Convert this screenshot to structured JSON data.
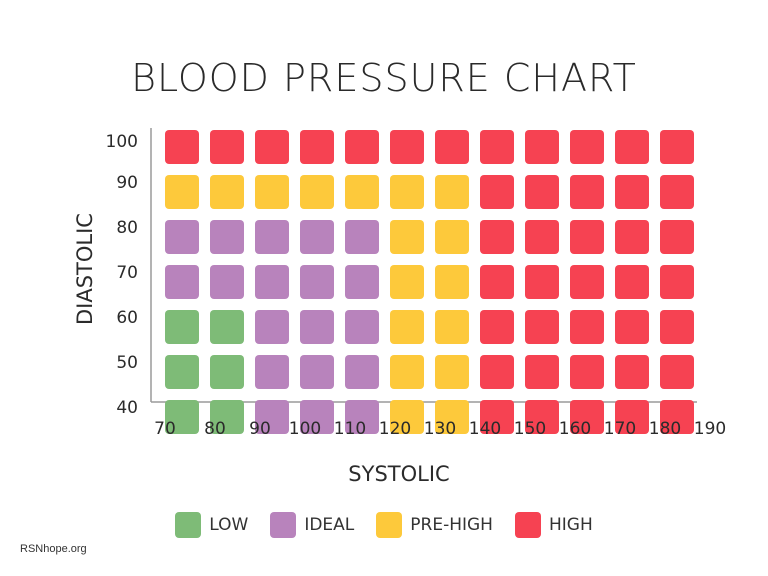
{
  "chart_data": {
    "type": "heatmap",
    "title": "BLOOD PRESSURE CHART",
    "xlabel": "SYSTOLIC",
    "ylabel": "DIASTOLIC",
    "x": [
      70,
      80,
      90,
      100,
      110,
      120,
      130,
      140,
      150,
      160,
      170,
      180,
      190
    ],
    "y": [
      100,
      90,
      80,
      70,
      60,
      50,
      40
    ],
    "grid_columns": [
      80,
      90,
      100,
      110,
      120,
      130,
      140,
      150,
      160,
      170,
      180,
      190
    ],
    "categories": {
      "low": {
        "label": "LOW",
        "color": "#7ebb77"
      },
      "ideal": {
        "label": "IDEAL",
        "color": "#b883bc"
      },
      "pre_high": {
        "label": "PRE-HIGH",
        "color": "#fdc93b"
      },
      "high": {
        "label": "HIGH",
        "color": "#f64252"
      }
    },
    "cells": [
      [
        "high",
        "high",
        "high",
        "high",
        "high",
        "high",
        "high",
        "high",
        "high",
        "high",
        "high",
        "high"
      ],
      [
        "pre_high",
        "pre_high",
        "pre_high",
        "pre_high",
        "pre_high",
        "pre_high",
        "pre_high",
        "high",
        "high",
        "high",
        "high",
        "high"
      ],
      [
        "ideal",
        "ideal",
        "ideal",
        "ideal",
        "ideal",
        "pre_high",
        "pre_high",
        "high",
        "high",
        "high",
        "high",
        "high"
      ],
      [
        "ideal",
        "ideal",
        "ideal",
        "ideal",
        "ideal",
        "pre_high",
        "pre_high",
        "high",
        "high",
        "high",
        "high",
        "high"
      ],
      [
        "low",
        "low",
        "ideal",
        "ideal",
        "ideal",
        "pre_high",
        "pre_high",
        "high",
        "high",
        "high",
        "high",
        "high"
      ],
      [
        "low",
        "low",
        "ideal",
        "ideal",
        "ideal",
        "pre_high",
        "pre_high",
        "high",
        "high",
        "high",
        "high",
        "high"
      ],
      [
        "low",
        "low",
        "ideal",
        "ideal",
        "ideal",
        "pre_high",
        "pre_high",
        "high",
        "high",
        "high",
        "high",
        "high"
      ]
    ],
    "legend": [
      "low",
      "ideal",
      "pre_high",
      "high"
    ],
    "legend_position": "bottom"
  },
  "source": "RSNhope.org"
}
